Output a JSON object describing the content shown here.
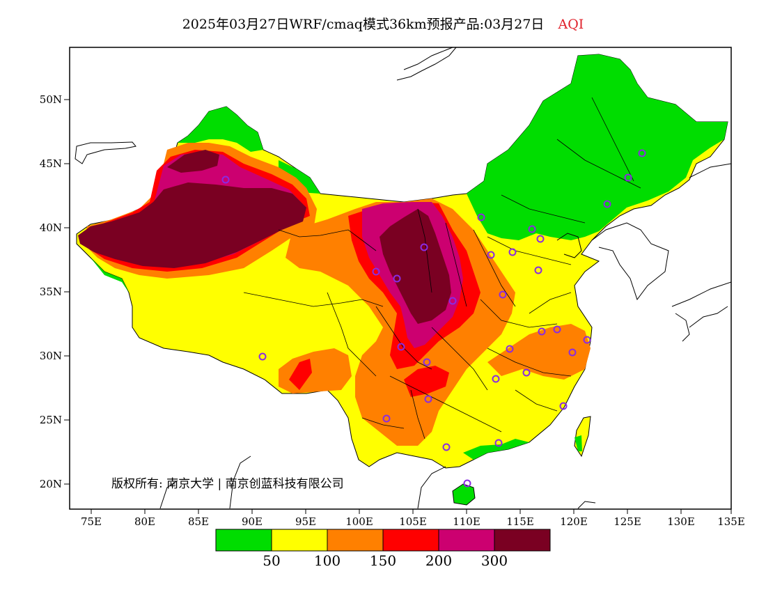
{
  "title": {
    "main": "2025年03月27日WRF/cmaq模式36km预报产品:03月27日",
    "variable": "AQI"
  },
  "axes": {
    "lat_ticks": [
      "50N",
      "45N",
      "40N",
      "35N",
      "30N",
      "25N",
      "20N"
    ],
    "lon_ticks": [
      "75E",
      "80E",
      "85E",
      "90E",
      "95E",
      "100E",
      "105E",
      "110E",
      "115E",
      "120E",
      "125E",
      "130E",
      "135E"
    ]
  },
  "copyright": "版权所有: 南京大学 | 南京创蓝科技有限公司",
  "legend": {
    "colors": [
      "#00dd00",
      "#ffff00",
      "#ff8000",
      "#ff0000",
      "#cc0070",
      "#7a0022"
    ],
    "labels": [
      "50",
      "100",
      "150",
      "200",
      "300"
    ]
  },
  "colors": {
    "good": "#00dd00",
    "moderate": "#ffff00",
    "unhealthy_sensitive": "#ff8000",
    "unhealthy": "#ff0000",
    "very_unhealthy": "#cc0070",
    "hazardous": "#7a0022",
    "station_marker": "#8a2be2"
  }
}
